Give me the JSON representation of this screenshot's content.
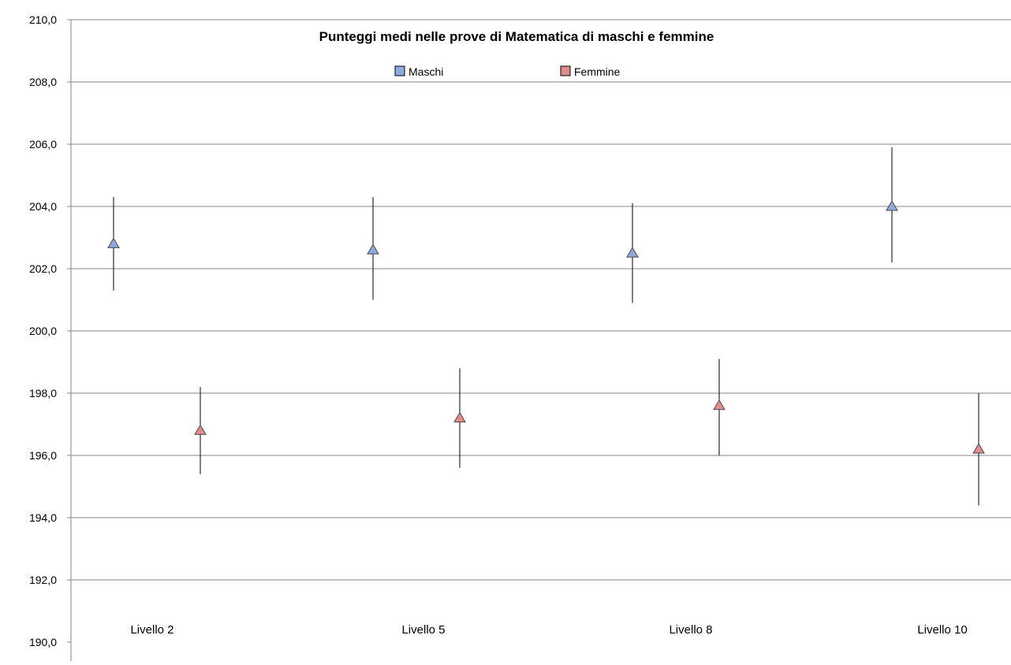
{
  "chart_data": {
    "type": "scatter",
    "title": "Punteggi medi nelle prove di Matematica di maschi e femmine",
    "xlabel": "",
    "ylabel": "",
    "categories": [
      "Livello 2",
      "Livello 5",
      "Livello 8",
      "Livello 10"
    ],
    "ylim": [
      190,
      210
    ],
    "y_ticks": [
      "190,0",
      "192,0",
      "194,0",
      "196,0",
      "198,0",
      "200,0",
      "202,0",
      "204,0",
      "206,0",
      "208,0",
      "210,0"
    ],
    "grid": true,
    "legend_position": "top-center",
    "marker": "triangle",
    "series": [
      {
        "name": "Maschi",
        "color": "#8EA9DB",
        "values": [
          202.8,
          202.6,
          202.5,
          204.0
        ],
        "error_low": [
          201.3,
          201.0,
          200.9,
          202.2
        ],
        "error_high": [
          204.3,
          204.3,
          204.1,
          205.9
        ]
      },
      {
        "name": "Femmine",
        "color": "#E08D8B",
        "values": [
          196.8,
          197.2,
          197.6,
          196.2
        ],
        "error_low": [
          195.4,
          195.6,
          196.0,
          194.4
        ],
        "error_high": [
          198.2,
          198.8,
          199.1,
          198.0
        ]
      }
    ]
  }
}
